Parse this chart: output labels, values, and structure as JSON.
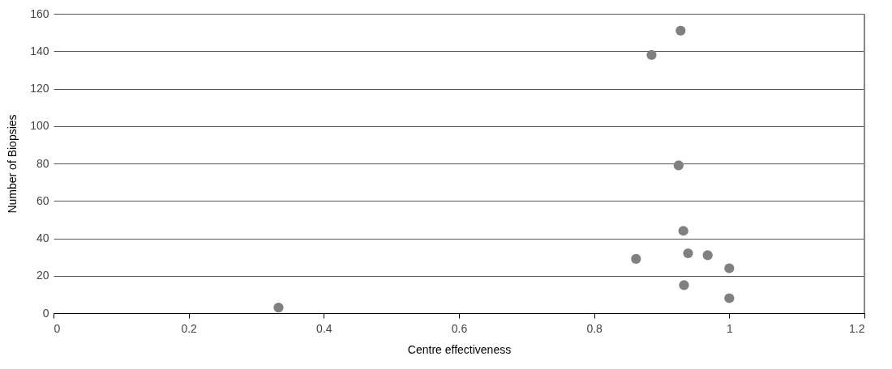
{
  "chart_data": {
    "type": "scatter",
    "xlabel": "Centre effectiveness",
    "ylabel": "Number of Biopsies",
    "x": [
      0.928,
      0.885,
      0.925,
      0.932,
      0.862,
      0.939,
      0.968,
      1.0,
      0.933,
      1.0,
      0.333
    ],
    "values": [
      151,
      138,
      79,
      44,
      29,
      32,
      31,
      24,
      15,
      8,
      3
    ],
    "color": "#808080",
    "marker": "circle",
    "xlim": [
      0,
      1.2
    ],
    "xticks": [
      0,
      0.2,
      0.4,
      0.6,
      0.8,
      1,
      1.2
    ],
    "ylim": [
      0,
      160
    ],
    "yticks": [
      0,
      20,
      40,
      60,
      80,
      100,
      120,
      140,
      160
    ],
    "grid": "y"
  }
}
